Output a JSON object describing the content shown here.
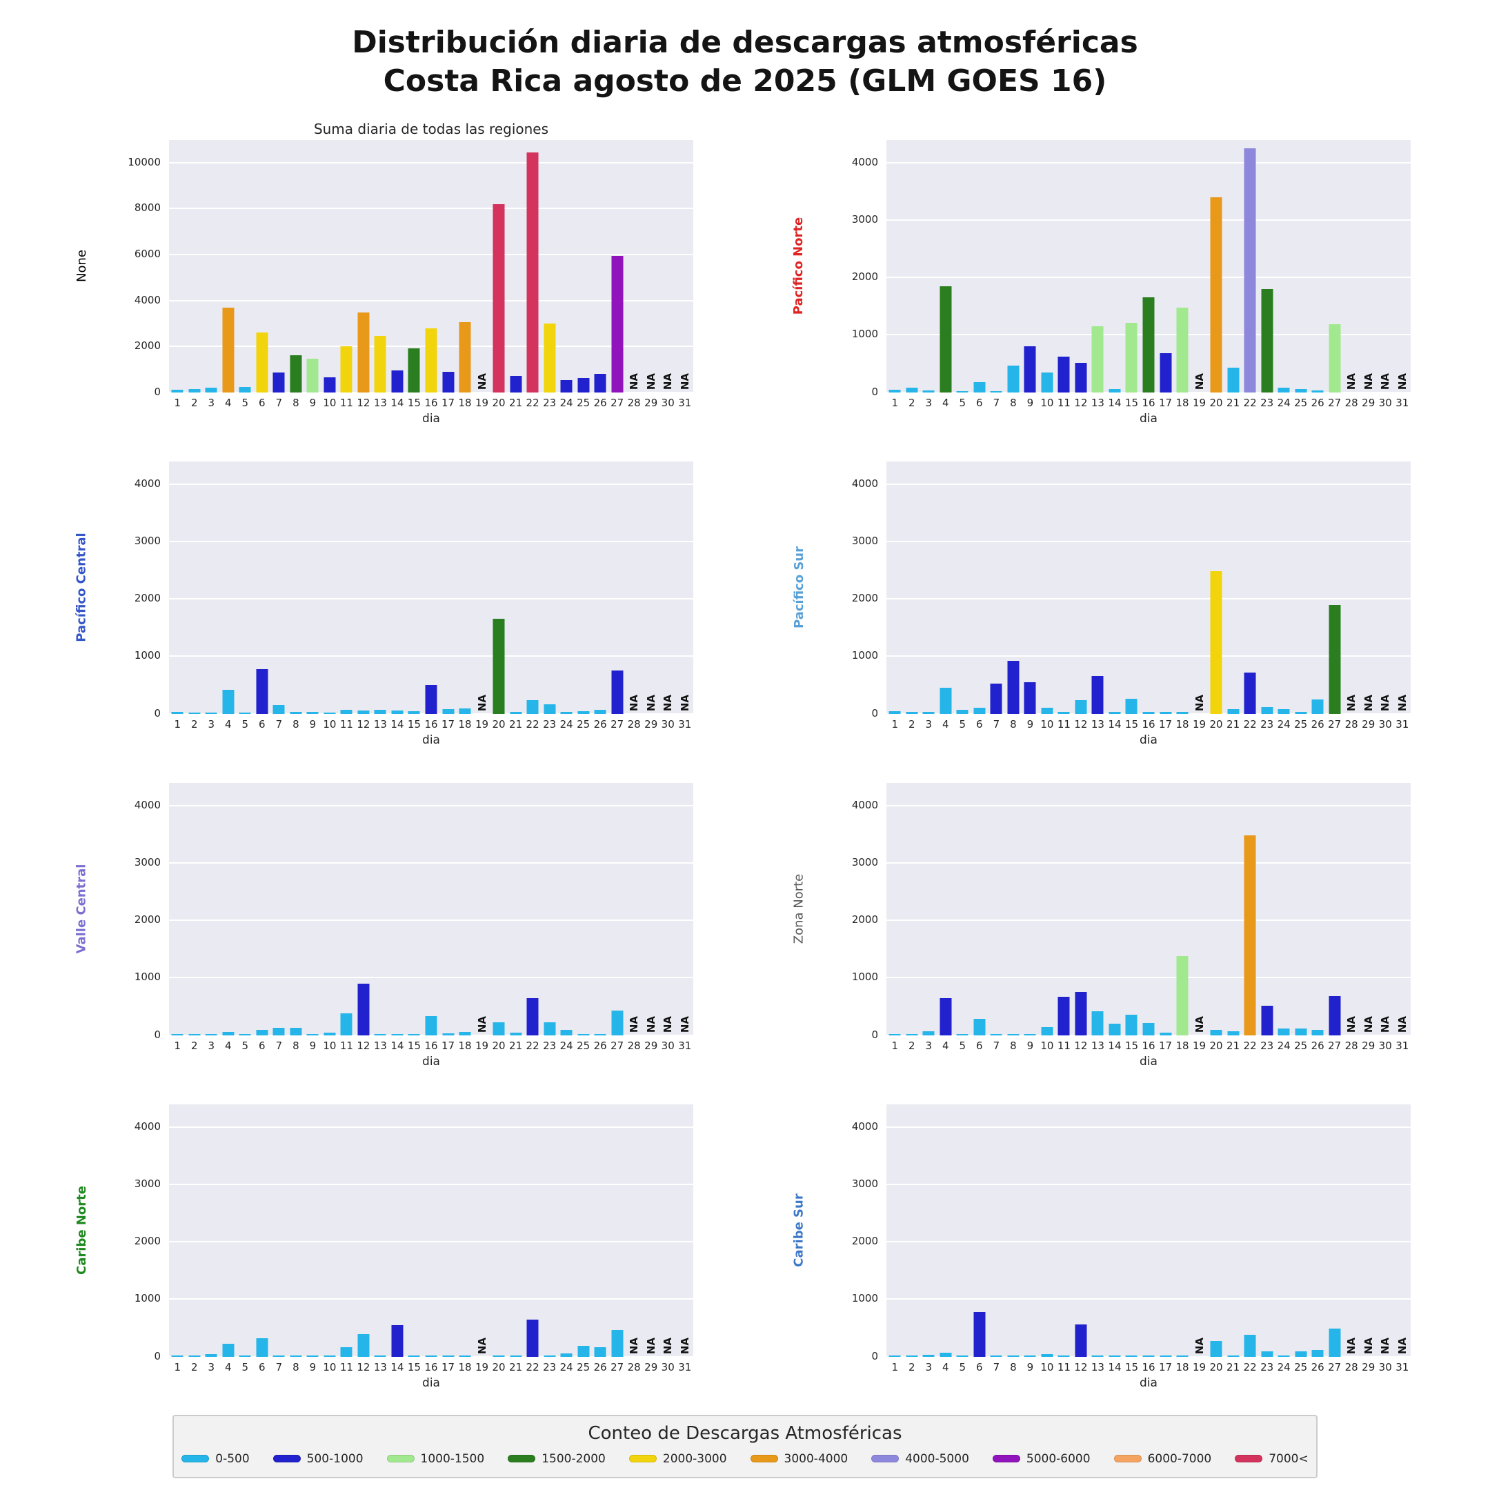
{
  "title": {
    "line1": "Distribución diaria de descargas atmosféricas",
    "line2": "Costa Rica agosto de 2025 (GLM GOES 16)"
  },
  "axis": {
    "xlabel": "dia",
    "na_label": "NA",
    "days": [
      1,
      2,
      3,
      4,
      5,
      6,
      7,
      8,
      9,
      10,
      11,
      12,
      13,
      14,
      15,
      16,
      17,
      18,
      19,
      20,
      21,
      22,
      23,
      24,
      25,
      26,
      27,
      28,
      29,
      30,
      31
    ]
  },
  "legend": {
    "title": "Conteo de Descargas Atmosféricas",
    "bins": [
      {
        "label": "0-500",
        "min": 0,
        "max": 500,
        "color": "#25b5e8"
      },
      {
        "label": "500-1000",
        "min": 500,
        "max": 1000,
        "color": "#2121cd"
      },
      {
        "label": "1000-1500",
        "min": 1000,
        "max": 1500,
        "color": "#a2e88f"
      },
      {
        "label": "1500-2000",
        "min": 1500,
        "max": 2000,
        "color": "#2b7e1f"
      },
      {
        "label": "2000-3000",
        "min": 2000,
        "max": 3000,
        "color": "#f2d40c"
      },
      {
        "label": "3000-4000",
        "min": 3000,
        "max": 4000,
        "color": "#e8991a"
      },
      {
        "label": "4000-5000",
        "min": 4000,
        "max": 5000,
        "color": "#8e88dc"
      },
      {
        "label": "5000-6000",
        "min": 5000,
        "max": 6000,
        "color": "#9013bb"
      },
      {
        "label": "6000-7000",
        "min": 6000,
        "max": 7000,
        "color": "#f4a460"
      },
      {
        "label": "7000<",
        "min": 7000,
        "max": null,
        "color": "#d3335c"
      }
    ]
  },
  "chart_data": [
    {
      "key": "total",
      "type": "bar",
      "title": "Suma diaria de todas las regiones",
      "ylabel": "None",
      "ylabel_color": "#000000",
      "ylabel_bold": false,
      "xlabel": "dia",
      "ylim": [
        0,
        11000
      ],
      "yticks": [
        0,
        2000,
        4000,
        6000,
        8000,
        10000
      ],
      "values": [
        110,
        150,
        210,
        3700,
        215,
        2600,
        850,
        1620,
        1450,
        660,
        2000,
        3470,
        2450,
        950,
        1900,
        2780,
        900,
        3060,
        null,
        8200,
        700,
        10450,
        2980,
        520,
        610,
        790,
        5950,
        null,
        null,
        null,
        null
      ]
    },
    {
      "key": "pacifico-norte",
      "type": "bar",
      "title": "",
      "ylabel": "Pacífico Norte",
      "ylabel_color": "#e02424",
      "ylabel_bold": true,
      "xlabel": "dia",
      "ylim": [
        0,
        4400
      ],
      "yticks": [
        0,
        1000,
        2000,
        3000,
        4000
      ],
      "values": [
        40,
        85,
        30,
        1850,
        15,
        175,
        20,
        460,
        800,
        350,
        620,
        510,
        1150,
        50,
        1210,
        1650,
        680,
        1480,
        null,
        3400,
        430,
        4250,
        1800,
        85,
        50,
        30,
        1180,
        null,
        null,
        null,
        null
      ]
    },
    {
      "key": "pacifico-central",
      "type": "bar",
      "title": "",
      "ylabel": "Pacífico Central",
      "ylabel_color": "#3456c8",
      "ylabel_bold": true,
      "xlabel": "dia",
      "ylim": [
        0,
        4400
      ],
      "yticks": [
        0,
        1000,
        2000,
        3000,
        4000
      ],
      "values": [
        30,
        10,
        15,
        420,
        20,
        780,
        150,
        35,
        30,
        10,
        70,
        50,
        70,
        50,
        40,
        500,
        80,
        90,
        null,
        1650,
        30,
        240,
        160,
        30,
        40,
        70,
        750,
        null,
        null,
        null,
        null
      ]
    },
    {
      "key": "pacifico-sur",
      "type": "bar",
      "title": "",
      "ylabel": "Pacífico Sur",
      "ylabel_color": "#58a0d8",
      "ylabel_bold": true,
      "xlabel": "dia",
      "ylim": [
        0,
        4400
      ],
      "yticks": [
        0,
        1000,
        2000,
        3000,
        4000
      ],
      "values": [
        40,
        30,
        30,
        450,
        70,
        100,
        520,
        920,
        550,
        105,
        30,
        240,
        660,
        30,
        260,
        30,
        30,
        30,
        null,
        2480,
        80,
        720,
        120,
        80,
        30,
        250,
        1900,
        null,
        null,
        null,
        null
      ]
    },
    {
      "key": "valle-central",
      "type": "bar",
      "title": "",
      "ylabel": "Valle Central",
      "ylabel_color": "#7b6fd0",
      "ylabel_bold": true,
      "xlabel": "dia",
      "ylim": [
        0,
        4400
      ],
      "yticks": [
        0,
        1000,
        2000,
        3000,
        4000
      ],
      "values": [
        10,
        8,
        12,
        60,
        8,
        90,
        130,
        130,
        10,
        45,
        380,
        900,
        15,
        12,
        10,
        330,
        30,
        50,
        null,
        230,
        40,
        650,
        230,
        90,
        12,
        10,
        430,
        null,
        null,
        null,
        null
      ]
    },
    {
      "key": "zona-norte",
      "type": "bar",
      "title": "",
      "ylabel": "Zona Norte",
      "ylabel_color": "#595959",
      "ylabel_bold": false,
      "xlabel": "dia",
      "ylim": [
        0,
        4400
      ],
      "yticks": [
        0,
        1000,
        2000,
        3000,
        4000
      ],
      "values": [
        10,
        12,
        70,
        640,
        10,
        290,
        10,
        10,
        12,
        140,
        670,
        750,
        420,
        200,
        360,
        210,
        45,
        1380,
        null,
        90,
        70,
        3480,
        510,
        110,
        120,
        90,
        680,
        null,
        null,
        null,
        null
      ]
    },
    {
      "key": "caribe-norte",
      "type": "bar",
      "title": "",
      "ylabel": "Caribe Norte",
      "ylabel_color": "#1f8a1f",
      "ylabel_bold": true,
      "xlabel": "dia",
      "ylim": [
        0,
        4400
      ],
      "yticks": [
        0,
        1000,
        2000,
        3000,
        4000
      ],
      "values": [
        5,
        10,
        40,
        230,
        10,
        320,
        10,
        10,
        10,
        10,
        160,
        390,
        20,
        550,
        10,
        10,
        20,
        10,
        null,
        20,
        20,
        650,
        20,
        60,
        190,
        160,
        470,
        null,
        null,
        null,
        null
      ]
    },
    {
      "key": "caribe-sur",
      "type": "bar",
      "title": "",
      "ylabel": "Caribe Sur",
      "ylabel_color": "#3c78c8",
      "ylabel_bold": true,
      "xlabel": "dia",
      "ylim": [
        0,
        4400
      ],
      "yticks": [
        0,
        1000,
        2000,
        3000,
        4000
      ],
      "values": [
        5,
        5,
        30,
        70,
        10,
        780,
        10,
        10,
        10,
        40,
        10,
        560,
        10,
        10,
        10,
        10,
        10,
        10,
        null,
        270,
        20,
        380,
        90,
        20,
        90,
        120,
        490,
        null,
        null,
        null,
        null
      ]
    }
  ]
}
